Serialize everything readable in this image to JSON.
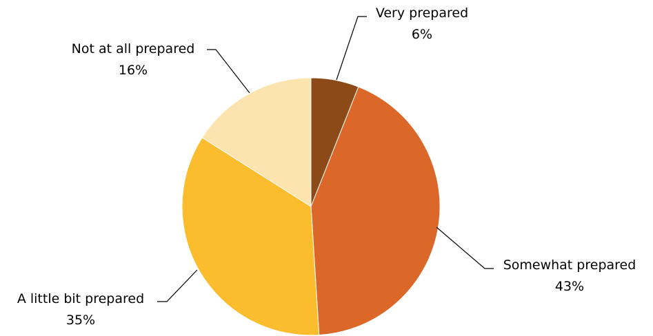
{
  "chart_data": {
    "type": "pie",
    "title": "",
    "start": "12 o'clock",
    "direction": "clockwise",
    "slices": [
      {
        "label": "Very prepared",
        "value": 6,
        "value_label": "6%",
        "color": "#8B4A17"
      },
      {
        "label": "Somewhat prepared",
        "value": 43,
        "value_label": "43%",
        "color": "#DB6828"
      },
      {
        "label": "A little bit prepared",
        "value": 35,
        "value_label": "35%",
        "color": "#FBBC2E"
      },
      {
        "label": "Not at all prepared",
        "value": 16,
        "value_label": "16%",
        "color": "#FDE3AE"
      }
    ],
    "legend": "none",
    "data_labels": "outside with leader lines"
  }
}
